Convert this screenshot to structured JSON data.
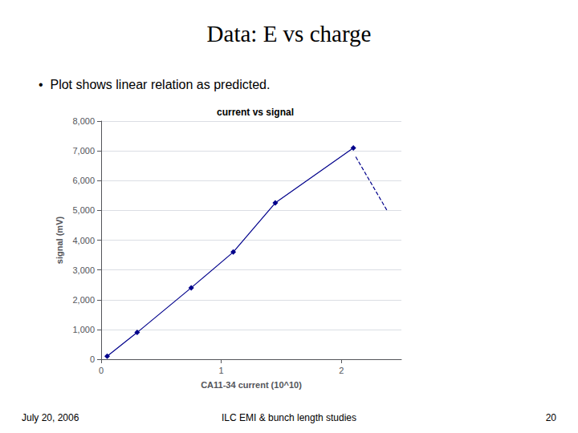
{
  "chart_data": {
    "type": "line",
    "title": "Data: E vs charge",
    "subtitle": "•  Plot shows linear relation as predicted.",
    "chart_title": "current vs signal",
    "xlabel": "CA11-34 current (10^10)",
    "ylabel": "signal (mV)",
    "series": [
      {
        "type": "line",
        "color": "#00008B",
        "marker": "diamond",
        "line_style": "solid",
        "x": [
          0.05,
          0.3,
          0.75,
          1.1,
          1.45,
          2.1
        ],
        "values": [
          100,
          900,
          2400,
          3600,
          5250,
          7100
        ]
      },
      {
        "type": "line",
        "color": "#00008B",
        "line_style": "dashed",
        "x": [
          2.12,
          2.38
        ],
        "values": [
          6800,
          5000
        ]
      }
    ],
    "xlim": [
      0,
      2.5
    ],
    "ylim": [
      0,
      8000
    ],
    "xticks": [
      0,
      1,
      2
    ],
    "yticks": [
      0,
      1000,
      2000,
      3000,
      4000,
      5000,
      6000,
      7000,
      8000
    ],
    "grid": "y",
    "annotations": [
      "July 20, 2006",
      "ILC EMI & bunch length studies",
      "20"
    ]
  }
}
